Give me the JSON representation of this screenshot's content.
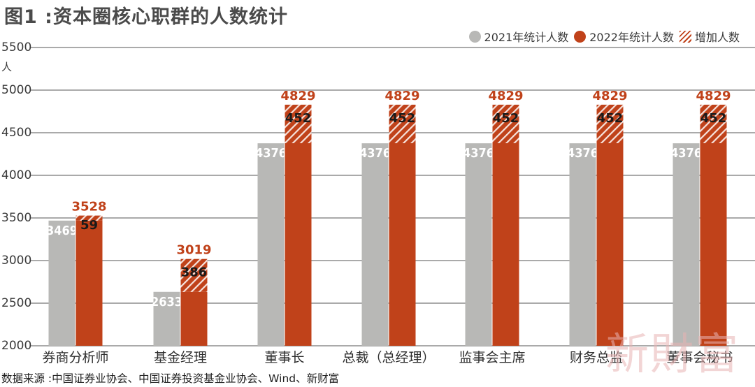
{
  "title": "图1 :资本圈核心职群的人数统计",
  "legend": {
    "s2021": "2021年统计人数",
    "s2022": "2022年统计人数",
    "increase": "增加人数"
  },
  "source": "数据来源 :中国证券业协会、中国证券投资基金业协会、Wind、新财富",
  "watermark": "新財富",
  "colors": {
    "s2021": "#b8b8b6",
    "s2022": "#c0421a",
    "grid": "#555555"
  },
  "chart_data": {
    "type": "bar",
    "title": "图1 :资本圈核心职群的人数统计",
    "ylabel": "人",
    "ylim": [
      2000,
      5500
    ],
    "yticks": [
      2000,
      2500,
      3000,
      3500,
      4000,
      4500,
      5000,
      5500
    ],
    "grid": true,
    "legend_position": "top-right",
    "categories": [
      "券商分析师",
      "基金经理",
      "董事长",
      "总裁（总经理）",
      "监事会主席",
      "财务总监",
      "董事会秘书"
    ],
    "series": [
      {
        "name": "2021年统计人数",
        "values": [
          3469,
          2633,
          4376,
          4376,
          4376,
          4376,
          4376
        ]
      },
      {
        "name": "2022年统计人数",
        "values": [
          3528,
          3019,
          4829,
          4829,
          4829,
          4829,
          4829
        ]
      },
      {
        "name": "增加人数",
        "values": [
          59,
          386,
          452,
          452,
          452,
          452,
          452
        ]
      }
    ]
  }
}
